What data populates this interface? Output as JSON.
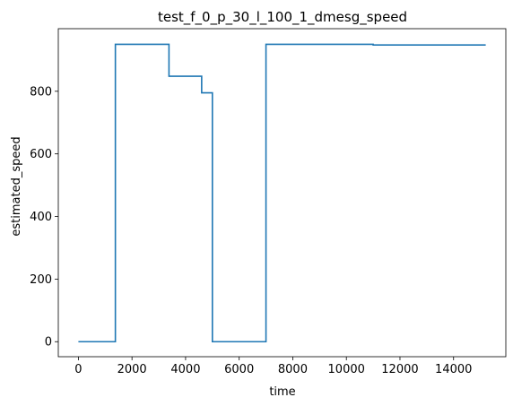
{
  "chart_data": {
    "type": "line",
    "title": "test_f_0_p_30_l_100_1_dmesg_speed",
    "xlabel": "time",
    "ylabel": "estimated_speed",
    "xlim": [
      -750,
      15950
    ],
    "ylim": [
      -48,
      1000
    ],
    "grid": false,
    "x_ticks": [
      0,
      2000,
      4000,
      6000,
      8000,
      10000,
      12000,
      14000
    ],
    "x_tick_labels": [
      "0",
      "2000",
      "4000",
      "6000",
      "8000",
      "10000",
      "12000",
      "14000"
    ],
    "y_ticks": [
      0,
      200,
      400,
      600,
      800
    ],
    "y_tick_labels": [
      "0",
      "200",
      "400",
      "600",
      "800"
    ],
    "line_color": "#1f77b4",
    "step": "post",
    "series": [
      {
        "x": [
          0,
          1380,
          3380,
          4600,
          5000,
          7000,
          11000,
          15200
        ],
        "y": [
          0,
          950,
          848,
          795,
          0,
          950,
          948,
          948
        ]
      }
    ]
  }
}
